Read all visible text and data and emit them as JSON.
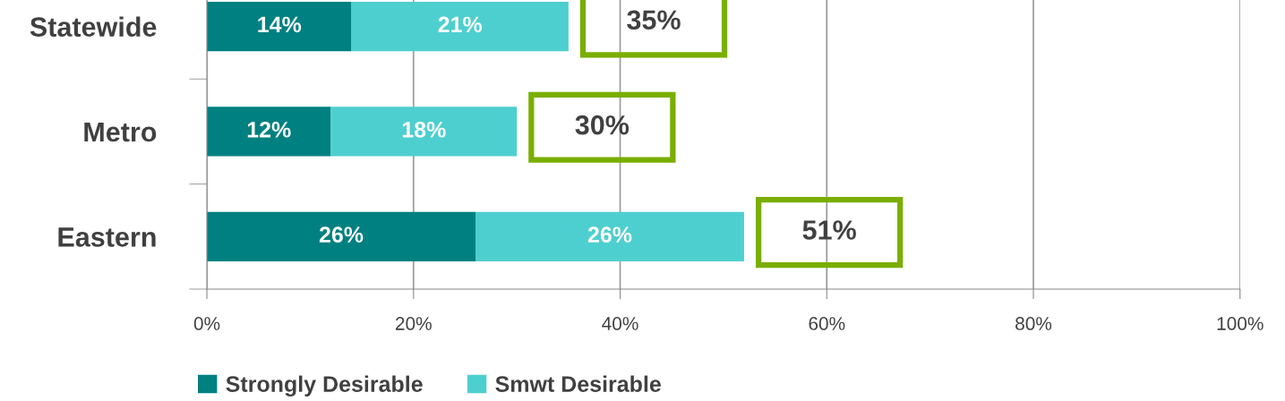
{
  "chart_data": {
    "type": "bar",
    "orientation": "horizontal",
    "stacked": true,
    "categories": [
      "Statewide",
      "Metro",
      "Eastern"
    ],
    "series": [
      {
        "name": "Strongly Desirable",
        "color": "#008080",
        "values": [
          14,
          12,
          26
        ],
        "value_labels": [
          "14%",
          "12%",
          "26%"
        ]
      },
      {
        "name": "Smwt Desirable",
        "color": "#4ecfcf",
        "values": [
          21,
          18,
          26
        ],
        "value_labels": [
          "21%",
          "18%",
          "26%"
        ]
      }
    ],
    "totals": [
      "35%",
      "30%",
      "51%"
    ],
    "xlim": [
      0,
      100
    ],
    "xticks": [
      {
        "value": 0,
        "label": "0%"
      },
      {
        "value": 20,
        "label": "20%"
      },
      {
        "value": 40,
        "label": "40%"
      },
      {
        "value": 60,
        "label": "60%"
      },
      {
        "value": 80,
        "label": "80%"
      },
      {
        "value": 100,
        "label": "100%"
      }
    ],
    "grid": "x",
    "legend": "bottom"
  }
}
